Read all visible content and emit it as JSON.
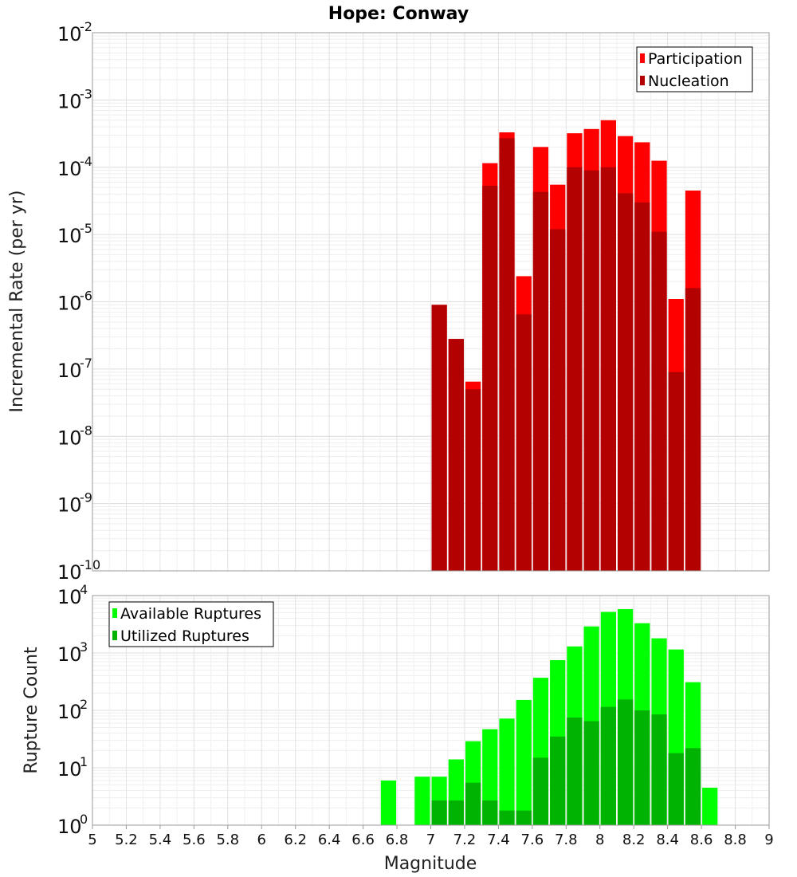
{
  "chart_data": [
    {
      "type": "bar",
      "title": "Hope: Conway",
      "xlabel": "",
      "ylabel": "Incremental Rate (per yr)",
      "yscale": "log",
      "xlim": [
        5,
        9
      ],
      "ylim": [
        1e-10,
        0.01
      ],
      "ytick_exponents": [
        "-10",
        "-9",
        "-8",
        "-7",
        "-6",
        "-5",
        "-4",
        "-3",
        "-2"
      ],
      "grid": true,
      "legend_position": "top-right",
      "bin_width": 0.1,
      "series": [
        {
          "name": "Participation",
          "color": "#ff0000",
          "x": [
            7.05,
            7.15,
            7.25,
            7.35,
            7.45,
            7.55,
            7.65,
            7.75,
            7.85,
            7.95,
            8.05,
            8.15,
            8.25,
            8.35,
            8.45,
            8.55
          ],
          "values": [
            9e-07,
            2.8e-07,
            6.5e-08,
            0.000115,
            0.00033,
            2.4e-06,
            0.0002,
            5.5e-05,
            0.00032,
            0.00037,
            0.0005,
            0.00029,
            0.000235,
            0.000125,
            1.1e-06,
            4.5e-05
          ]
        },
        {
          "name": "Nucleation",
          "color": "#b30000",
          "x": [
            7.05,
            7.15,
            7.25,
            7.35,
            7.45,
            7.55,
            7.65,
            7.75,
            7.85,
            7.95,
            8.05,
            8.15,
            8.25,
            8.35,
            8.45,
            8.55
          ],
          "values": [
            9e-07,
            2.8e-07,
            5e-08,
            5.3e-05,
            0.00027,
            6.5e-07,
            4.3e-05,
            1.2e-05,
            0.0001,
            9e-05,
            0.0001,
            4.1e-05,
            3e-05,
            1.1e-05,
            9e-08,
            1.6e-06
          ]
        }
      ]
    },
    {
      "type": "bar",
      "title": "",
      "xlabel": "Magnitude",
      "ylabel": "Rupture Count",
      "yscale": "log",
      "xlim": [
        5,
        9
      ],
      "ylim": [
        1,
        10000
      ],
      "ytick_exponents": [
        "0",
        "1",
        "2",
        "3",
        "4"
      ],
      "xticks": [
        "5",
        "5.2",
        "5.4",
        "5.6",
        "5.8",
        "6",
        "6.2",
        "6.4",
        "6.6",
        "6.8",
        "7",
        "7.2",
        "7.4",
        "7.6",
        "7.8",
        "8",
        "8.2",
        "8.4",
        "8.6",
        "8.8",
        "9"
      ],
      "grid": true,
      "legend_position": "top-left",
      "bin_width": 0.1,
      "series": [
        {
          "name": "Available Ruptures",
          "color": "#00ff00",
          "x": [
            6.75,
            6.95,
            7.05,
            7.15,
            7.25,
            7.35,
            7.45,
            7.55,
            7.65,
            7.75,
            7.85,
            7.95,
            8.05,
            8.15,
            8.25,
            8.35,
            8.45,
            8.55,
            8.65
          ],
          "values": [
            6,
            7,
            7,
            14,
            29,
            47,
            72,
            152,
            370,
            750,
            1300,
            2900,
            5200,
            5800,
            3300,
            1800,
            1150,
            310,
            4.5
          ]
        },
        {
          "name": "Utilized Ruptures",
          "color": "#00b300",
          "x": [
            7.05,
            7.15,
            7.25,
            7.35,
            7.45,
            7.55,
            7.65,
            7.75,
            7.85,
            7.95,
            8.05,
            8.15,
            8.25,
            8.35,
            8.45,
            8.55
          ],
          "values": [
            2.7,
            2.7,
            5.5,
            2.7,
            1.8,
            1.8,
            15,
            35,
            75,
            65,
            115,
            155,
            100,
            85,
            18,
            22
          ]
        }
      ]
    }
  ]
}
